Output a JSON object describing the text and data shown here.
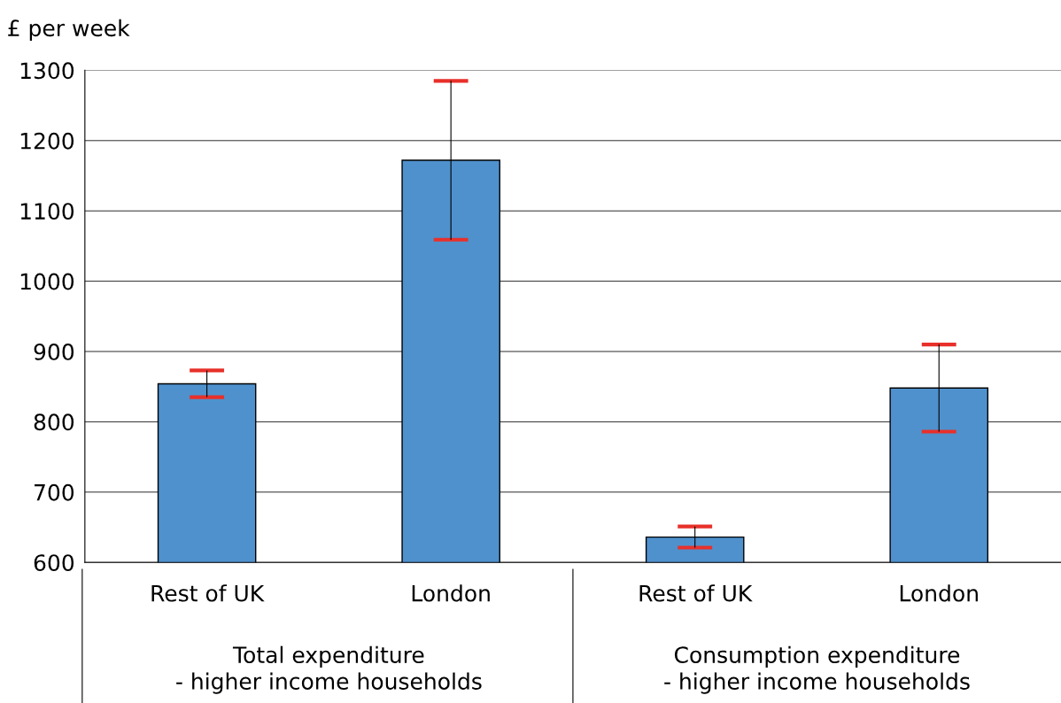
{
  "chart_data": {
    "type": "bar",
    "ylabel": "£ per week",
    "categories": [
      "Rest of UK",
      "London",
      "Rest of UK",
      "London"
    ],
    "values": [
      854,
      1172,
      636,
      848
    ],
    "errors": [
      19,
      113,
      15,
      62
    ],
    "color": "#4f91cd",
    "ylim": [
      600,
      1300
    ],
    "yticks": [
      600,
      700,
      800,
      900,
      1000,
      1100,
      1200,
      1300
    ],
    "grid": "y",
    "annotations": [
      "Total expenditure\n- higher income households",
      "Consumption expenditure\n- higher income households"
    ]
  }
}
